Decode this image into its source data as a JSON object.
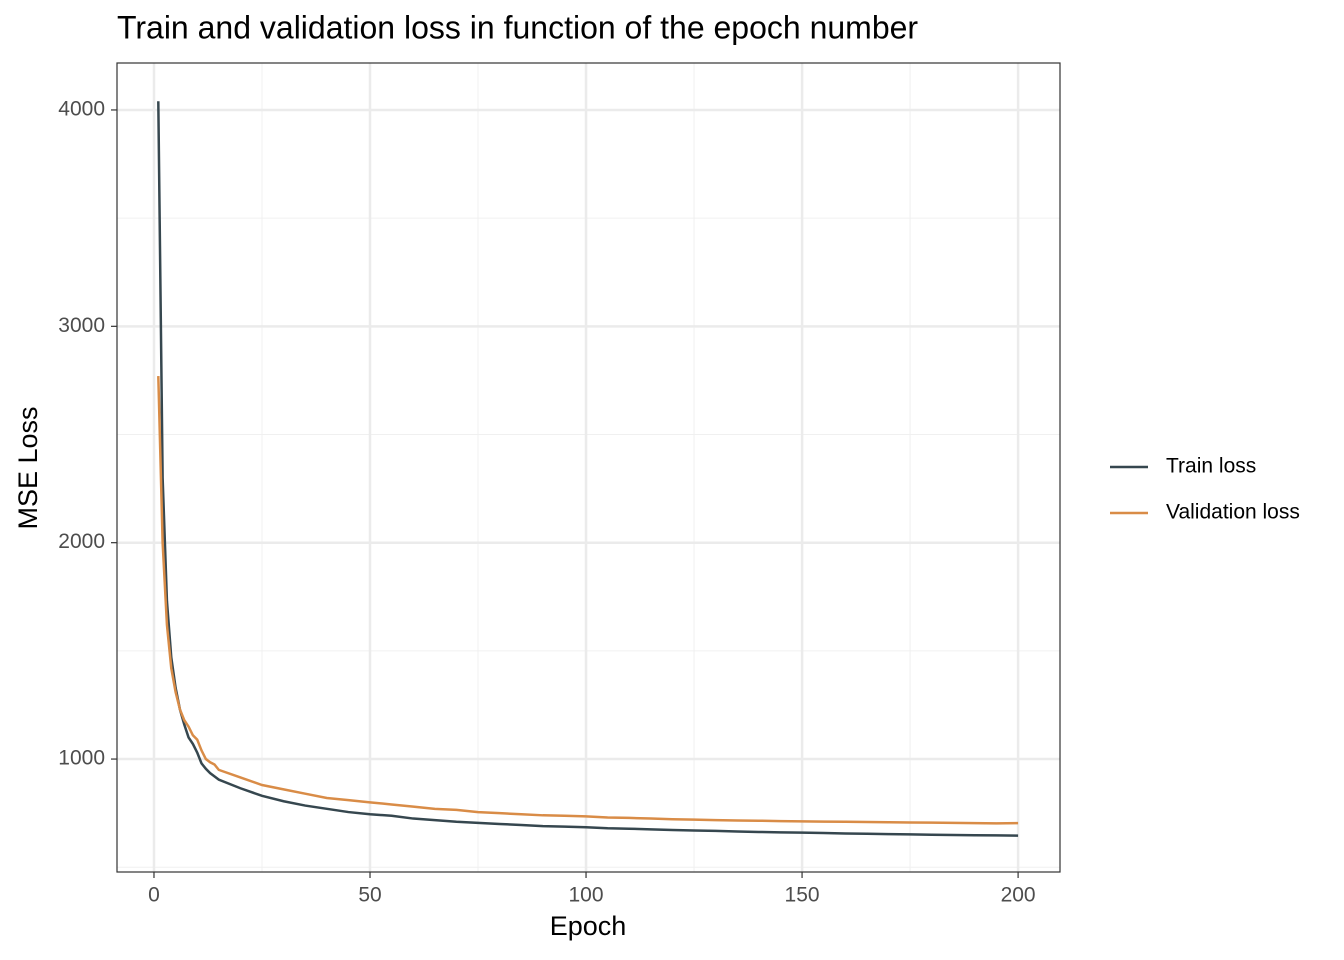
{
  "chart_data": {
    "type": "line",
    "title": "Train and validation loss in function of the epoch number",
    "x_label": "Epoch",
    "y_label": "MSE Loss",
    "x": [
      1,
      2,
      3,
      4,
      5,
      6,
      7,
      8,
      9,
      10,
      11,
      12,
      13,
      14,
      15,
      20,
      25,
      30,
      35,
      40,
      45,
      50,
      55,
      60,
      65,
      70,
      75,
      80,
      85,
      90,
      95,
      100,
      105,
      110,
      115,
      120,
      125,
      130,
      135,
      140,
      145,
      150,
      155,
      160,
      165,
      170,
      175,
      180,
      185,
      190,
      195,
      200
    ],
    "series": [
      {
        "name": "Train loss",
        "color": "#36474f",
        "values": [
          4040,
          2300,
          1730,
          1470,
          1330,
          1230,
          1160,
          1100,
          1070,
          1030,
          980,
          955,
          935,
          920,
          905,
          865,
          830,
          805,
          785,
          770,
          755,
          745,
          738,
          725,
          718,
          710,
          705,
          700,
          695,
          690,
          688,
          685,
          680,
          678,
          675,
          672,
          670,
          668,
          665,
          663,
          661,
          660,
          658,
          656,
          655,
          653,
          652,
          650,
          649,
          648,
          647,
          646
        ]
      },
      {
        "name": "Validation loss",
        "color": "#d98c47",
        "values": [
          2770,
          2000,
          1620,
          1420,
          1310,
          1230,
          1180,
          1150,
          1110,
          1090,
          1040,
          1000,
          985,
          975,
          950,
          915,
          880,
          860,
          840,
          820,
          810,
          800,
          790,
          780,
          770,
          765,
          755,
          750,
          745,
          740,
          738,
          735,
          730,
          728,
          725,
          722,
          720,
          718,
          716,
          715,
          713,
          712,
          711,
          710,
          709,
          708,
          707,
          706,
          705,
          704,
          703,
          704
        ]
      }
    ],
    "xlim": [
      -8.56,
      209.7
    ],
    "ylim": [
      478,
      4217
    ],
    "xticks": [
      0,
      50,
      100,
      150,
      200
    ],
    "yticks": [
      1000,
      2000,
      3000,
      4000
    ],
    "xminor": [
      25,
      75,
      125,
      175
    ],
    "yminor": [
      500,
      1500,
      2500,
      3500
    ],
    "grid": true,
    "legend": "right"
  }
}
